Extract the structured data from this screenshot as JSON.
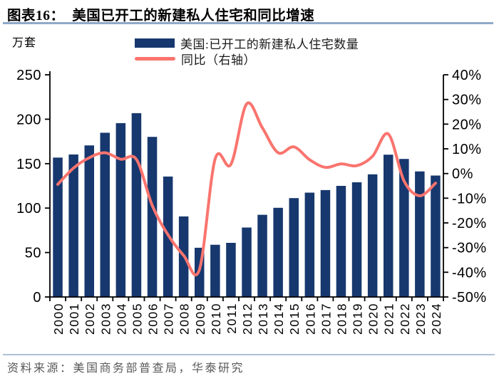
{
  "figure": {
    "title": "图表16：  美国已开工的新建私人住宅和同比增速",
    "unit_label": "万套",
    "source": "资料来源：美国商务部普查局，华泰研究"
  },
  "legend": {
    "bars_label": "美国:已开工的新建私人住宅数量",
    "line_label": "同比（右轴）"
  },
  "colors": {
    "bar": "#17386E",
    "line": "#FA746E",
    "axis": "#000000",
    "title_rule": "#8FA9C9",
    "footer_rule": "#AFC0D8",
    "source_text": "#595959"
  },
  "chart_data": {
    "type": "bar+line",
    "title": "美国已开工的新建私人住宅和同比增速",
    "xlabel": "",
    "ylabel_left": "万套",
    "ylabel_right": "%",
    "grid": false,
    "legend_position": "top",
    "categories": [
      "2000",
      "2001",
      "2002",
      "2003",
      "2004",
      "2005",
      "2006",
      "2007",
      "2008",
      "2009",
      "2010",
      "2011",
      "2012",
      "2013",
      "2014",
      "2015",
      "2016",
      "2017",
      "2018",
      "2019",
      "2020",
      "2021",
      "2022",
      "2023",
      "2024"
    ],
    "series": [
      {
        "name": "美国:已开工的新建私人住宅数量",
        "type": "bar",
        "axis": "left",
        "values": [
          156.8,
          160.3,
          170.5,
          184.8,
          195.6,
          206.8,
          180.1,
          135.5,
          90.6,
          55.4,
          58.7,
          60.9,
          78.1,
          92.5,
          100.3,
          111.2,
          117.4,
          120.3,
          125.0,
          129.0,
          138.0,
          160.1,
          155.3,
          141.3,
          136.6
        ]
      },
      {
        "name": "同比（右轴）",
        "type": "line",
        "axis": "right",
        "values": [
          -4.4,
          2.2,
          6.4,
          8.4,
          5.8,
          5.7,
          -12.9,
          -24.8,
          -33.2,
          -38.9,
          5.9,
          3.7,
          28.2,
          18.5,
          8.4,
          10.8,
          5.6,
          2.5,
          3.9,
          3.2,
          7.0,
          16.0,
          -3.0,
          -9.0,
          -3.9
        ]
      }
    ],
    "left_axis": {
      "min": 0,
      "max": 250,
      "step": 50,
      "tick_labels": [
        "0",
        "50",
        "100",
        "150",
        "200",
        "250"
      ]
    },
    "right_axis": {
      "min": -50,
      "max": 40,
      "step": 10,
      "tick_labels": [
        "-50%",
        "-40%",
        "-30%",
        "-20%",
        "-10%",
        "0%",
        "10%",
        "20%",
        "30%",
        "40%"
      ]
    }
  }
}
